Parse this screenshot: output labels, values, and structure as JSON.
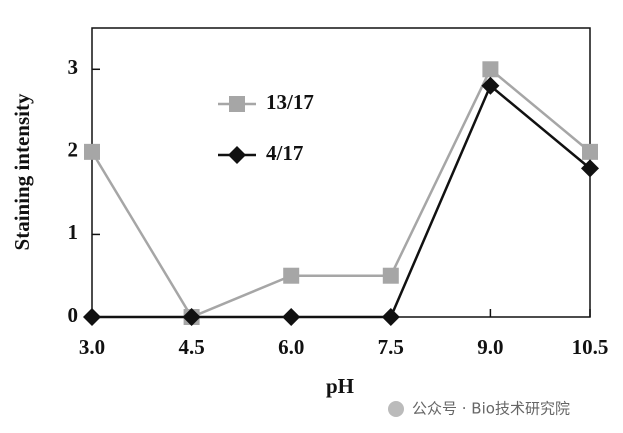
{
  "chart_data": {
    "type": "line",
    "x_label": "pH",
    "y_label": "Staining intensity",
    "x": [
      3,
      4.5,
      6,
      7.5,
      9,
      10.5
    ],
    "xlim": [
      3,
      10.5
    ],
    "xticks": [
      {
        "value": 3,
        "label": "3.0"
      },
      {
        "value": 4.5,
        "label": "4.5"
      },
      {
        "value": 6,
        "label": "6.0"
      },
      {
        "value": 7.5,
        "label": "7.5"
      },
      {
        "value": 9,
        "label": "9.0"
      },
      {
        "value": 10.5,
        "label": "10.5"
      }
    ],
    "ylim": [
      0,
      3.5
    ],
    "yticks": [
      0,
      1,
      2,
      3
    ],
    "series": [
      {
        "name": "13/17",
        "color": "#a6a6a6",
        "marker": "square",
        "values": [
          2,
          0,
          0.5,
          0.5,
          3,
          2
        ]
      },
      {
        "name": "4/17",
        "color": "#111111",
        "marker": "diamond",
        "values": [
          0,
          0,
          0,
          0,
          2.8,
          1.8
        ]
      }
    ],
    "watermark": "公众号 · Bio技术研究院"
  }
}
